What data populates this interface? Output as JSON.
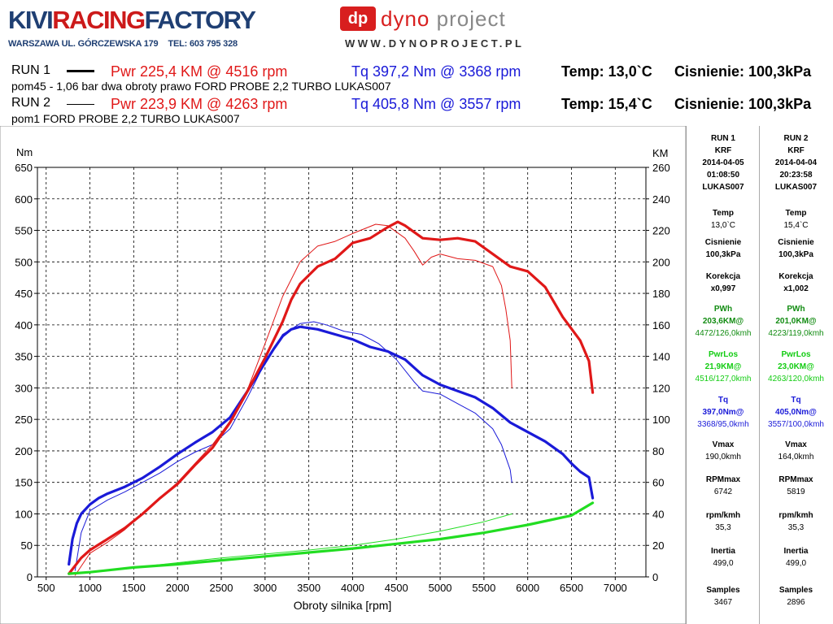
{
  "header": {
    "brand_left": "KIVIRACINGFACTORY",
    "brand_left_a": "KIVI",
    "brand_left_b": "RACING",
    "brand_left_c": "FACTORY",
    "address": "WARSZAWA UL. GÓRCZEWSKA 179",
    "phone": "TEL: 603 795 328",
    "brand_right_badge": "dp",
    "brand_right_a": "dyno",
    "brand_right_b": "project",
    "url": "WWW.DYNOPROJECT.PL"
  },
  "runs": [
    {
      "label": "RUN 1",
      "pwr": "Pwr  225,4 KM @ 4516 rpm",
      "tq": "Tq 397,2 Nm @ 3368 rpm",
      "temp": "Temp: 13,0`C",
      "pressure": "Cisnienie: 100,3kPa",
      "desc": "pom45 - 1,06 bar dwa obroty prawo FORD PROBE 2,2 TURBO LUKAS007"
    },
    {
      "label": "RUN 2",
      "pwr": "Pwr  223,9 KM @ 4263 rpm",
      "tq": "Tq 405,8 Nm @ 3557 rpm",
      "temp": "Temp: 15,4`C",
      "pressure": "Cisnienie: 100,3kPa",
      "desc": "pom1 FORD PROBE 2,2 TURBO LUKAS007"
    }
  ],
  "side_panel": {
    "columns": [
      {
        "run": "RUN 1",
        "code": "KRF",
        "date": "2014-04-05",
        "time": "01:08:50",
        "user": "LUKAS007",
        "temp_label": "Temp",
        "temp": "13,0`C",
        "pres_label": "Cisnienie",
        "pres": "100,3kPa",
        "korekcja_label": "Korekcja",
        "korekcja": "x0,997",
        "pwh_label": "PWh",
        "pwh_1": "203,6KM@",
        "pwh_2": "4472/126,0kmh",
        "pwrlos_label": "PwrLos",
        "pwrlos_1": "21,9KM@",
        "pwrlos_2": "4516/127,0kmh",
        "tq_label": "Tq",
        "tq_1": "397,0Nm@",
        "tq_2": "3368/95,0kmh",
        "vmax_label": "Vmax",
        "vmax": "190,0kmh",
        "rpmmax_label": "RPMmax",
        "rpmmax": "6742",
        "rpmkmh_label": "rpm/kmh",
        "rpmkmh": "35,3",
        "inertia_label": "Inertia",
        "inertia": "499,0",
        "samples_label": "Samples",
        "samples": "3467"
      },
      {
        "run": "RUN 2",
        "code": "KRF",
        "date": "2014-04-04",
        "time": "20:23:58",
        "user": "LUKAS007",
        "temp_label": "Temp",
        "temp": "15,4`C",
        "pres_label": "Cisnienie",
        "pres": "100,3kPa",
        "korekcja_label": "Korekcja",
        "korekcja": "x1,002",
        "pwh_label": "PWh",
        "pwh_1": "201,0KM@",
        "pwh_2": "4223/119,0kmh",
        "pwrlos_label": "PwrLos",
        "pwrlos_1": "23,0KM@",
        "pwrlos_2": "4263/120,0kmh",
        "tq_label": "Tq",
        "tq_1": "405,0Nm@",
        "tq_2": "3557/100,0kmh",
        "vmax_label": "Vmax",
        "vmax": "164,0kmh",
        "rpmmax_label": "RPMmax",
        "rpmmax": "5819",
        "rpmkmh_label": "rpm/kmh",
        "rpmkmh": "35,3",
        "inertia_label": "Inertia",
        "inertia": "499,0",
        "samples_label": "Samples",
        "samples": "2896"
      }
    ]
  },
  "chart_data": {
    "type": "line",
    "title": "",
    "xlabel": "Obroty silnika [rpm]",
    "ylabel_left": "Nm",
    "ylabel_right": "KM",
    "xlim": [
      400,
      7350
    ],
    "ylim_left": [
      0,
      650
    ],
    "ylim_right": [
      0,
      260
    ],
    "x_ticks": [
      500,
      1000,
      1500,
      2000,
      2500,
      3000,
      3500,
      4000,
      4500,
      5000,
      5500,
      6000,
      6500,
      7000
    ],
    "y_ticks_left": [
      0,
      50,
      100,
      150,
      200,
      250,
      300,
      350,
      400,
      450,
      500,
      550,
      600,
      650
    ],
    "y_ticks_right": [
      0,
      20,
      40,
      60,
      80,
      100,
      120,
      140,
      160,
      180,
      200,
      220,
      240,
      260
    ],
    "grid": true,
    "colors": {
      "power": "#e01818",
      "torque": "#1a1ad8",
      "losses": "#22dd22",
      "grid": "#000000"
    },
    "series": [
      {
        "name": "Run 1 Torque",
        "axis": "left",
        "color": "#1a1ad8",
        "width": 3.2,
        "x": [
          760,
          800,
          850,
          900,
          1000,
          1100,
          1200,
          1400,
          1600,
          1800,
          2000,
          2200,
          2400,
          2600,
          2800,
          3000,
          3100,
          3200,
          3300,
          3400,
          3600,
          3800,
          4000,
          4200,
          4400,
          4600,
          4800,
          5000,
          5200,
          5400,
          5600,
          5800,
          6000,
          6200,
          6400,
          6500,
          6600,
          6700,
          6742
        ],
        "y": [
          20,
          60,
          85,
          100,
          115,
          125,
          132,
          143,
          157,
          175,
          195,
          213,
          230,
          253,
          295,
          340,
          362,
          382,
          393,
          397,
          393,
          385,
          377,
          365,
          358,
          345,
          320,
          305,
          295,
          285,
          268,
          245,
          230,
          215,
          195,
          180,
          167,
          158,
          125
        ]
      },
      {
        "name": "Run 2 Torque",
        "axis": "left",
        "color": "#1a1ad8",
        "width": 1,
        "x": [
          830,
          900,
          1000,
          1200,
          1400,
          1600,
          1800,
          2000,
          2200,
          2400,
          2600,
          2800,
          3000,
          3200,
          3400,
          3557,
          3700,
          3900,
          4100,
          4300,
          4500,
          4700,
          4800,
          5000,
          5200,
          5400,
          5600,
          5700,
          5800,
          5819
        ],
        "y": [
          10,
          70,
          105,
          122,
          135,
          150,
          165,
          183,
          198,
          210,
          235,
          285,
          340,
          385,
          402,
          405,
          400,
          390,
          385,
          370,
          345,
          310,
          295,
          290,
          275,
          260,
          235,
          210,
          170,
          150
        ]
      },
      {
        "name": "Run 1 Power",
        "axis": "right",
        "color": "#e01818",
        "width": 3.2,
        "x": [
          760,
          900,
          1000,
          1200,
          1400,
          1600,
          1800,
          2000,
          2200,
          2400,
          2600,
          2800,
          3000,
          3200,
          3300,
          3400,
          3600,
          3800,
          4000,
          4200,
          4400,
          4516,
          4600,
          4800,
          5000,
          5200,
          5400,
          5600,
          5800,
          6000,
          6200,
          6400,
          6600,
          6700,
          6742
        ],
        "y": [
          2,
          12,
          17,
          24,
          31,
          40,
          50,
          59,
          71,
          82,
          98,
          118,
          139,
          162,
          176,
          186,
          197,
          202,
          212,
          215,
          222,
          225.4,
          223,
          215,
          214,
          215,
          213,
          205,
          197,
          194,
          184,
          165,
          150,
          137,
          117
        ]
      },
      {
        "name": "Run 2 Power",
        "axis": "right",
        "color": "#e01818",
        "width": 1,
        "x": [
          830,
          1000,
          1200,
          1400,
          1600,
          1800,
          2000,
          2200,
          2400,
          2600,
          2800,
          3000,
          3200,
          3400,
          3600,
          3800,
          4000,
          4263,
          4400,
          4600,
          4700,
          4800,
          4900,
          5000,
          5200,
          5400,
          5600,
          5700,
          5750,
          5800,
          5819
        ],
        "y": [
          1,
          15,
          22,
          30,
          40,
          50,
          60,
          72,
          84,
          99,
          119,
          148,
          178,
          200,
          210,
          213,
          218,
          223.9,
          223,
          215,
          207,
          198,
          203,
          205,
          202,
          201,
          197,
          185,
          170,
          150,
          120
        ]
      },
      {
        "name": "Run 1 Losses",
        "axis": "right",
        "color": "#22dd22",
        "width": 3.2,
        "x": [
          760,
          1000,
          1500,
          2000,
          2500,
          3000,
          3500,
          4000,
          4500,
          5000,
          5500,
          6000,
          6500,
          6742
        ],
        "y": [
          2,
          3,
          6,
          8,
          10.5,
          13,
          15.5,
          18,
          21,
          24,
          28,
          33,
          39,
          47
        ]
      },
      {
        "name": "Run 2 Losses",
        "axis": "right",
        "color": "#22dd22",
        "width": 1,
        "x": [
          830,
          1000,
          1500,
          2000,
          2500,
          3000,
          3500,
          4000,
          4500,
          5000,
          5500,
          5819
        ],
        "y": [
          2,
          3,
          6,
          9,
          12,
          14.5,
          17,
          20,
          24,
          29,
          35,
          40
        ]
      }
    ]
  }
}
